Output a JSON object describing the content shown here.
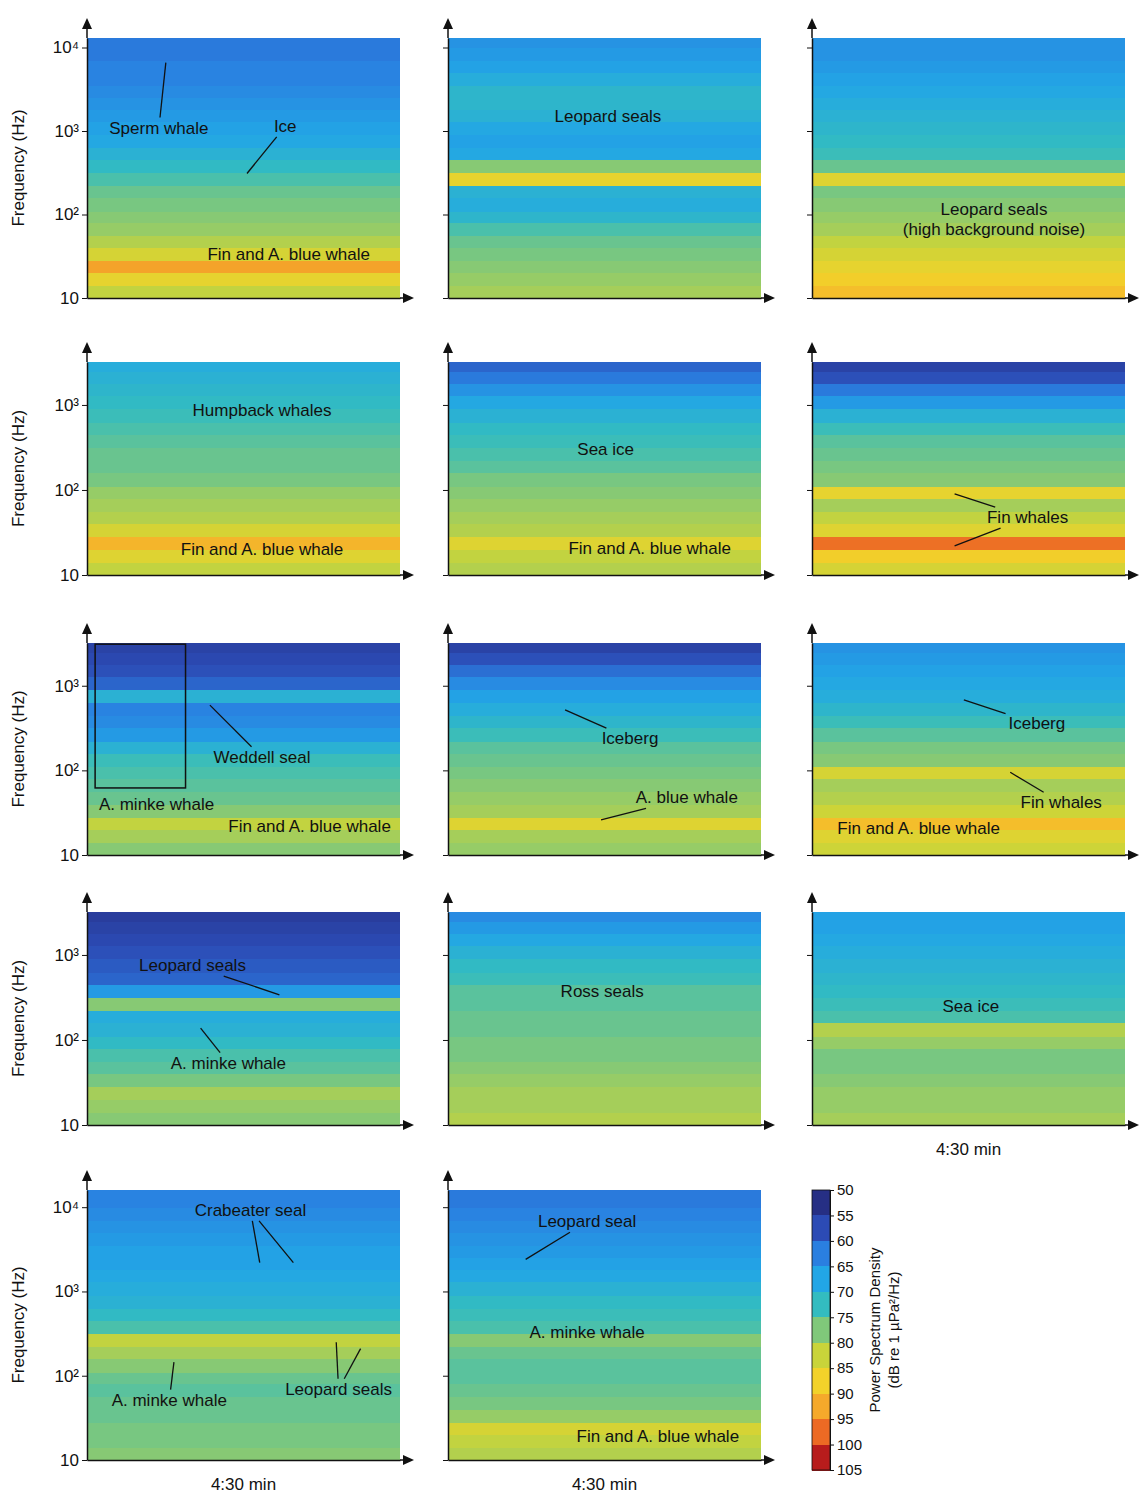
{
  "chart_data": [
    {
      "type": "heatmap",
      "log": "y",
      "xlim": [
        0,
        270
      ],
      "ylim": [
        10,
        13000
      ],
      "yticks": [
        10,
        {
          "value": 100,
          "label": "10²"
        },
        {
          "value": 1000,
          "label": "10³"
        },
        {
          "value": 10000,
          "label": "10⁴"
        }
      ],
      "tick_labels": "y",
      "ylabel": "Frequency (Hz)",
      "freq_edges": [
        10,
        14,
        20,
        28,
        40,
        56,
        80,
        110,
        160,
        220,
        320,
        450,
        630,
        900,
        1300,
        1800,
        2500,
        3500,
        5000,
        7000,
        10000,
        16000
      ],
      "levels": [
        82,
        86,
        93,
        84,
        81,
        79,
        78,
        77,
        76,
        74,
        72,
        70,
        68,
        67,
        66,
        65,
        64,
        63,
        63,
        62,
        62
      ],
      "annotations": [
        {
          "text": "Sperm whale",
          "x": 62,
          "y": 1100,
          "targets": [
            {
              "x": 68,
              "y": 6600
            }
          ]
        },
        {
          "text": "Ice",
          "x": 171,
          "y": 1150,
          "targets": [
            {
              "x": 138,
              "y": 310
            }
          ]
        },
        {
          "text": "Fin and A. blue whale",
          "x": 174,
          "y": 34
        }
      ]
    },
    {
      "type": "heatmap",
      "log": "y",
      "xlim": [
        0,
        270
      ],
      "ylim": [
        10,
        13000
      ],
      "yticks": [
        10,
        100,
        1000,
        10000
      ],
      "tick_labels": false,
      "freq_edges": [
        10,
        14,
        20,
        28,
        40,
        56,
        80,
        110,
        160,
        220,
        320,
        450,
        630,
        900,
        1300,
        1800,
        2500,
        3500,
        5000,
        7000,
        10000,
        16000
      ],
      "levels": [
        80,
        79,
        78,
        77,
        76,
        74,
        71,
        69,
        70,
        86,
        78,
        68,
        67,
        68,
        70,
        71,
        71,
        69,
        67,
        66,
        65
      ],
      "annotations": [
        {
          "text": "Leopard seals",
          "x": 138,
          "y": 1500
        }
      ]
    },
    {
      "type": "heatmap",
      "log": "y",
      "xlim": [
        0,
        270
      ],
      "ylim": [
        10,
        13000
      ],
      "yticks": [
        10,
        100,
        1000,
        10000
      ],
      "tick_labels": false,
      "freq_edges": [
        10,
        14,
        20,
        28,
        40,
        56,
        80,
        110,
        160,
        220,
        320,
        450,
        630,
        900,
        1300,
        1800,
        2500,
        3500,
        5000,
        7000,
        10000,
        16000
      ],
      "levels": [
        90,
        88,
        86,
        84,
        82,
        80,
        79,
        78,
        77,
        85,
        76,
        73,
        72,
        71,
        70,
        69,
        68,
        67,
        66,
        65,
        65
      ],
      "annotations": [
        {
          "text": [
            "Leopard seals",
            "(high background noise)"
          ],
          "x": 157,
          "y": 88
        }
      ]
    },
    {
      "type": "heatmap",
      "log": "y",
      "xlim": [
        0,
        270
      ],
      "ylim": [
        10,
        3200
      ],
      "yticks": [
        10,
        {
          "value": 100,
          "label": "10²"
        },
        {
          "value": 1000,
          "label": "10³"
        }
      ],
      "tick_labels": "y",
      "ylabel": "Frequency (Hz)",
      "freq_edges": [
        10,
        14,
        20,
        28,
        40,
        56,
        80,
        110,
        160,
        220,
        320,
        450,
        630,
        900,
        1300,
        1800,
        2500,
        3500,
        5000,
        7000,
        10000,
        16000
      ],
      "levels": [
        82,
        85,
        91,
        84,
        81,
        80,
        79,
        77,
        76,
        76,
        75,
        74,
        73,
        72,
        71,
        70,
        69,
        68,
        67,
        66,
        65
      ],
      "annotations": [
        {
          "text": "Humpback whales",
          "x": 151,
          "y": 870
        },
        {
          "text": "Fin and A. blue whale",
          "x": 151,
          "y": 20
        }
      ]
    },
    {
      "type": "heatmap",
      "log": "y",
      "xlim": [
        0,
        270
      ],
      "ylim": [
        10,
        3200
      ],
      "yticks": [
        10,
        100,
        1000
      ],
      "tick_labels": false,
      "freq_edges": [
        10,
        14,
        20,
        28,
        40,
        56,
        80,
        110,
        160,
        220,
        320,
        450,
        630,
        900,
        1300,
        1800,
        2500,
        3500,
        5000,
        7000,
        10000,
        16000
      ],
      "levels": [
        81,
        82,
        85,
        81,
        80,
        79,
        78,
        77,
        75,
        74,
        73,
        72,
        70,
        68,
        65,
        62,
        60,
        58,
        57,
        56,
        56
      ],
      "annotations": [
        {
          "text": "Sea ice",
          "x": 136,
          "y": 300
        },
        {
          "text": "Fin and A. blue whale",
          "x": 174,
          "y": 21
        }
      ]
    },
    {
      "type": "heatmap",
      "log": "y",
      "xlim": [
        0,
        270
      ],
      "ylim": [
        10,
        3200
      ],
      "yticks": [
        10,
        100,
        1000
      ],
      "tick_labels": false,
      "freq_edges": [
        10,
        14,
        20,
        28,
        40,
        56,
        80,
        110,
        160,
        220,
        320,
        450,
        630,
        900,
        1300,
        1800,
        2500,
        3500,
        5000,
        7000,
        10000,
        16000
      ],
      "levels": [
        84,
        88,
        97,
        85,
        82,
        80,
        86,
        78,
        77,
        76,
        75,
        73,
        70,
        66,
        62,
        58,
        56,
        55,
        54,
        54,
        54
      ],
      "annotations": [
        {
          "text": "Fin whales",
          "x": 186,
          "y": 48,
          "targets": [
            {
              "x": 123,
              "y": 90
            },
            {
              "x": 123,
              "y": 22
            }
          ]
        }
      ]
    },
    {
      "type": "heatmap",
      "log": "y",
      "xlim": [
        0,
        270
      ],
      "ylim": [
        10,
        3200
      ],
      "yticks": [
        10,
        {
          "value": 100,
          "label": "10²"
        },
        {
          "value": 1000,
          "label": "10³"
        }
      ],
      "tick_labels": "y",
      "ylabel": "Frequency (Hz)",
      "freq_edges": [
        10,
        14,
        20,
        28,
        40,
        56,
        80,
        110,
        160,
        220,
        320,
        450,
        630,
        900,
        1300,
        1800,
        2500,
        3500,
        5000,
        7000,
        10000,
        16000
      ],
      "levels": [
        78,
        80,
        82,
        78,
        76,
        75,
        74,
        73,
        70,
        66,
        64,
        63,
        70,
        60,
        58,
        57,
        56,
        55,
        55,
        55,
        55
      ],
      "annotations": [
        {
          "text": "Weddell seal",
          "x": 151,
          "y": 145,
          "targets": [
            {
              "x": 106,
              "y": 590
            }
          ]
        },
        {
          "text": "A. minke whale",
          "x": 60,
          "y": 40,
          "box": {
            "x": [
              7,
              85
            ],
            "y": [
              62,
              3100
            ]
          }
        },
        {
          "text": "Fin and A. blue whale",
          "x": 192,
          "y": 22
        }
      ]
    },
    {
      "type": "heatmap",
      "log": "y",
      "xlim": [
        0,
        270
      ],
      "ylim": [
        10,
        3200
      ],
      "yticks": [
        10,
        100,
        1000
      ],
      "tick_labels": false,
      "freq_edges": [
        10,
        14,
        20,
        28,
        40,
        56,
        80,
        110,
        160,
        220,
        320,
        450,
        630,
        900,
        1300,
        1800,
        2500,
        3500,
        5000,
        7000,
        10000,
        16000
      ],
      "levels": [
        79,
        80,
        85,
        80,
        79,
        78,
        77,
        76,
        75,
        73,
        71,
        69,
        67,
        64,
        61,
        58,
        56,
        55,
        55,
        55,
        55
      ],
      "annotations": [
        {
          "text": "Iceberg",
          "x": 157,
          "y": 240,
          "targets": [
            {
              "x": 101,
              "y": 520
            }
          ]
        },
        {
          "text": "A. blue whale",
          "x": 206,
          "y": 48,
          "targets": [
            {
              "x": 132,
              "y": 26
            }
          ]
        }
      ]
    },
    {
      "type": "heatmap",
      "log": "y",
      "xlim": [
        0,
        270
      ],
      "ylim": [
        10,
        3200
      ],
      "yticks": [
        10,
        100,
        1000
      ],
      "tick_labels": false,
      "freq_edges": [
        10,
        14,
        20,
        28,
        40,
        56,
        80,
        110,
        160,
        220,
        320,
        450,
        630,
        900,
        1300,
        1800,
        2500,
        3500,
        5000,
        7000,
        10000,
        16000
      ],
      "levels": [
        83,
        85,
        90,
        83,
        81,
        80,
        84,
        78,
        77,
        75,
        73,
        71,
        69,
        68,
        67,
        66,
        65,
        64,
        64,
        64,
        64
      ],
      "annotations": [
        {
          "text": "Iceberg",
          "x": 194,
          "y": 360,
          "targets": [
            {
              "x": 131,
              "y": 680
            }
          ]
        },
        {
          "text": "Fin whales",
          "x": 215,
          "y": 42,
          "targets": [
            {
              "x": 171,
              "y": 95
            }
          ]
        },
        {
          "text": "Fin and A. blue whale",
          "x": 92,
          "y": 21
        }
      ]
    },
    {
      "type": "heatmap",
      "log": "y",
      "xlim": [
        0,
        270
      ],
      "ylim": [
        10,
        3200
      ],
      "yticks": [
        10,
        {
          "value": 100,
          "label": "10²"
        },
        {
          "value": 1000,
          "label": "10³"
        }
      ],
      "tick_labels": "y",
      "ylabel": "Frequency (Hz)",
      "freq_edges": [
        10,
        14,
        20,
        28,
        40,
        56,
        80,
        110,
        160,
        220,
        320,
        450,
        630,
        900,
        1300,
        1800,
        2500,
        3500,
        5000,
        7000,
        10000,
        16000
      ],
      "levels": [
        78,
        79,
        80,
        77,
        75,
        74,
        72,
        70,
        69,
        78,
        66,
        60,
        59,
        58,
        57,
        56,
        55,
        55,
        55,
        55,
        55
      ],
      "annotations": [
        {
          "text": "Leopard seals",
          "x": 91,
          "y": 760,
          "targets": [
            {
              "x": 166,
              "y": 340
            }
          ]
        },
        {
          "text": "A. minke whale",
          "x": 122,
          "y": 54,
          "targets": [
            {
              "x": 98,
              "y": 138
            }
          ]
        }
      ]
    },
    {
      "type": "heatmap",
      "log": "y",
      "xlim": [
        0,
        270
      ],
      "ylim": [
        10,
        3200
      ],
      "yticks": [
        10,
        100,
        1000
      ],
      "tick_labels": false,
      "freq_edges": [
        10,
        14,
        20,
        28,
        40,
        56,
        80,
        110,
        160,
        220,
        320,
        450,
        630,
        900,
        1300,
        1800,
        2500,
        3500,
        5000,
        7000,
        10000,
        16000
      ],
      "levels": [
        81,
        80,
        80,
        79,
        78,
        77,
        77,
        76,
        76,
        75,
        75,
        73,
        72,
        70,
        68,
        66,
        64,
        63,
        63,
        63,
        63
      ],
      "annotations": [
        {
          "text": "Ross seals",
          "x": 133,
          "y": 380
        }
      ]
    },
    {
      "type": "heatmap",
      "log": "y",
      "xlim": [
        0,
        270
      ],
      "ylim": [
        10,
        3200
      ],
      "yticks": [
        10,
        100,
        1000
      ],
      "tick_labels": false,
      "xlabel": "4:30 min",
      "freq_edges": [
        10,
        14,
        20,
        28,
        40,
        56,
        80,
        110,
        160,
        220,
        320,
        450,
        630,
        900,
        1300,
        1800,
        2500,
        3500,
        5000,
        7000,
        10000,
        16000
      ],
      "levels": [
        80,
        79,
        79,
        78,
        77,
        77,
        79,
        81,
        74,
        73,
        72,
        71,
        70,
        69,
        68,
        67,
        67,
        66,
        66,
        66,
        66
      ],
      "annotations": [
        {
          "text": "Sea ice",
          "x": 137,
          "y": 250
        }
      ]
    },
    {
      "type": "heatmap",
      "log": "y",
      "xlim": [
        0,
        270
      ],
      "ylim": [
        10,
        16000
      ],
      "yticks": [
        10,
        {
          "value": 100,
          "label": "10²"
        },
        {
          "value": 1000,
          "label": "10³"
        },
        {
          "value": 10000,
          "label": "10⁴"
        }
      ],
      "tick_labels": "y",
      "ylabel": "Frequency (Hz)",
      "xlabel": "4:30 min",
      "freq_edges": [
        10,
        14,
        20,
        28,
        40,
        56,
        80,
        110,
        160,
        220,
        320,
        450,
        630,
        900,
        1300,
        1800,
        2500,
        3500,
        5000,
        7000,
        10000,
        16000
      ],
      "levels": [
        78,
        77,
        77,
        76,
        76,
        75,
        76,
        78,
        80,
        82,
        74,
        72,
        70,
        69,
        68,
        67,
        67,
        66,
        65,
        64,
        63
      ],
      "annotations": [
        {
          "text": "Crabeater seal",
          "x": 141,
          "y": 9300,
          "targets": [
            {
              "x": 149,
              "y": 2200
            },
            {
              "x": 178,
              "y": 2200
            }
          ]
        },
        {
          "text": "A. minke whale",
          "x": 71,
          "y": 52,
          "targets": [
            {
              "x": 75,
              "y": 145
            }
          ]
        },
        {
          "text": "Leopard seals",
          "x": 217,
          "y": 70,
          "targets": [
            {
              "x": 215,
              "y": 250
            },
            {
              "x": 236,
              "y": 210
            }
          ]
        }
      ]
    },
    {
      "type": "heatmap",
      "log": "y",
      "xlim": [
        0,
        270
      ],
      "ylim": [
        10,
        16000
      ],
      "yticks": [
        10,
        100,
        1000,
        10000
      ],
      "tick_labels": false,
      "xlabel": "4:30 min",
      "freq_edges": [
        10,
        14,
        20,
        28,
        40,
        56,
        80,
        110,
        160,
        220,
        320,
        450,
        630,
        900,
        1300,
        1800,
        2500,
        3500,
        5000,
        7000,
        10000,
        16000
      ],
      "levels": [
        81,
        82,
        84,
        79,
        77,
        76,
        75,
        75,
        76,
        78,
        74,
        73,
        72,
        70,
        68,
        67,
        66,
        65,
        64,
        63,
        62
      ],
      "annotations": [
        {
          "text": "Leopard seal",
          "x": 120,
          "y": 6800,
          "targets": [
            {
              "x": 67,
              "y": 2400
            }
          ]
        },
        {
          "text": "A. minke whale",
          "x": 120,
          "y": 330
        },
        {
          "text": "Fin and A. blue whale",
          "x": 181,
          "y": 19
        }
      ]
    }
  ],
  "colorbar": {
    "range": [
      50,
      105
    ],
    "ticks": [
      50,
      55,
      60,
      65,
      70,
      75,
      80,
      85,
      90,
      95,
      100,
      105
    ],
    "colors": [
      "#262f84",
      "#2c4bb5",
      "#2a7fe0",
      "#22a6e6",
      "#33bcc0",
      "#80c87a",
      "#c9d43a",
      "#f2d22a",
      "#f5a92b",
      "#ec6a24",
      "#b71c1c"
    ],
    "label": [
      "Power Spectrum Density",
      "(dB re 1 µPa²/Hz)"
    ]
  }
}
